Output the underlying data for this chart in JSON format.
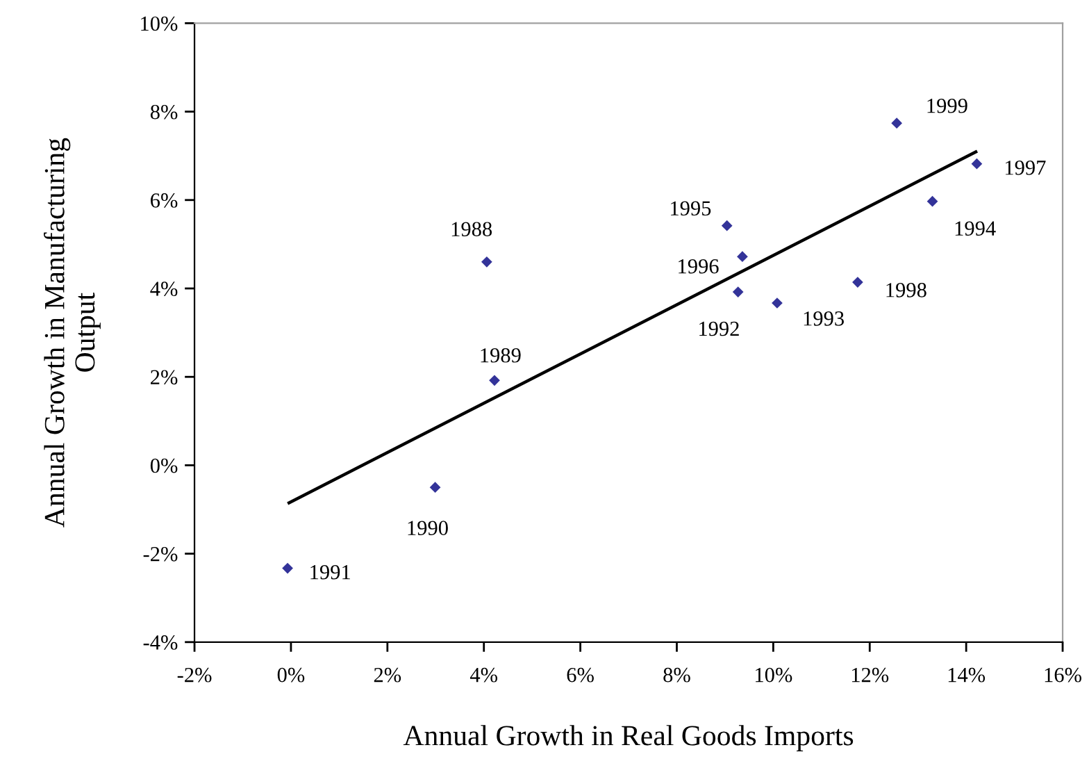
{
  "chart_data": {
    "type": "scatter",
    "xlabel": "Annual Growth in Real Goods Imports",
    "ylabel": "Annual Growth in Manufacturing\nOutput",
    "series": [
      {
        "color": "#333399",
        "marker": "diamond",
        "x": [
          4.06,
          4.22,
          2.99,
          -0.07,
          9.27,
          10.08,
          13.3,
          9.04,
          9.36,
          14.22,
          11.75,
          12.56
        ],
        "values": [
          4.6,
          1.92,
          -0.5,
          -2.33,
          3.92,
          3.67,
          5.97,
          5.42,
          4.72,
          6.82,
          4.14,
          7.74
        ]
      },
      {
        "type": "line",
        "color": "#000000",
        "marker": "none",
        "line_style": "solid",
        "x": [
          -0.04,
          14.2
        ],
        "values": [
          -0.85,
          7.09
        ]
      }
    ],
    "annotations": [
      {
        "text": "1988",
        "x": 4.06,
        "y": 4.6
      },
      {
        "text": "1989",
        "x": 4.22,
        "y": 1.92
      },
      {
        "text": "1990",
        "x": 2.99,
        "y": -0.5
      },
      {
        "text": "1991",
        "x": -0.07,
        "y": -2.33
      },
      {
        "text": "1992",
        "x": 9.27,
        "y": 3.92
      },
      {
        "text": "1993",
        "x": 10.08,
        "y": 3.67
      },
      {
        "text": "1994",
        "x": 13.3,
        "y": 5.97
      },
      {
        "text": "1995",
        "x": 9.04,
        "y": 5.42
      },
      {
        "text": "1996",
        "x": 9.36,
        "y": 4.72
      },
      {
        "text": "1997",
        "x": 14.22,
        "y": 6.82
      },
      {
        "text": "1998",
        "x": 11.75,
        "y": 4.14
      },
      {
        "text": "1999",
        "x": 12.56,
        "y": 7.74
      }
    ],
    "xlim": [
      -2,
      16
    ],
    "xticks": [
      {
        "value": -2,
        "label": "-2%"
      },
      {
        "value": 0,
        "label": "0%"
      },
      {
        "value": 2,
        "label": "2%"
      },
      {
        "value": 4,
        "label": "4%"
      },
      {
        "value": 6,
        "label": "6%"
      },
      {
        "value": 8,
        "label": "8%"
      },
      {
        "value": 10,
        "label": "10%"
      },
      {
        "value": 12,
        "label": "12%"
      },
      {
        "value": 14,
        "label": "14%"
      },
      {
        "value": 16,
        "label": "16%"
      }
    ],
    "ylim": [
      -4,
      10
    ],
    "yticks": [
      {
        "value": -4,
        "label": "-4%"
      },
      {
        "value": -2,
        "label": "-2%"
      },
      {
        "value": 0,
        "label": "0%"
      },
      {
        "value": 2,
        "label": "2%"
      },
      {
        "value": 4,
        "label": "4%"
      },
      {
        "value": 6,
        "label": "6%"
      },
      {
        "value": 8,
        "label": "8%"
      },
      {
        "value": 10,
        "label": "10%"
      }
    ],
    "grid": false,
    "legend": false
  }
}
